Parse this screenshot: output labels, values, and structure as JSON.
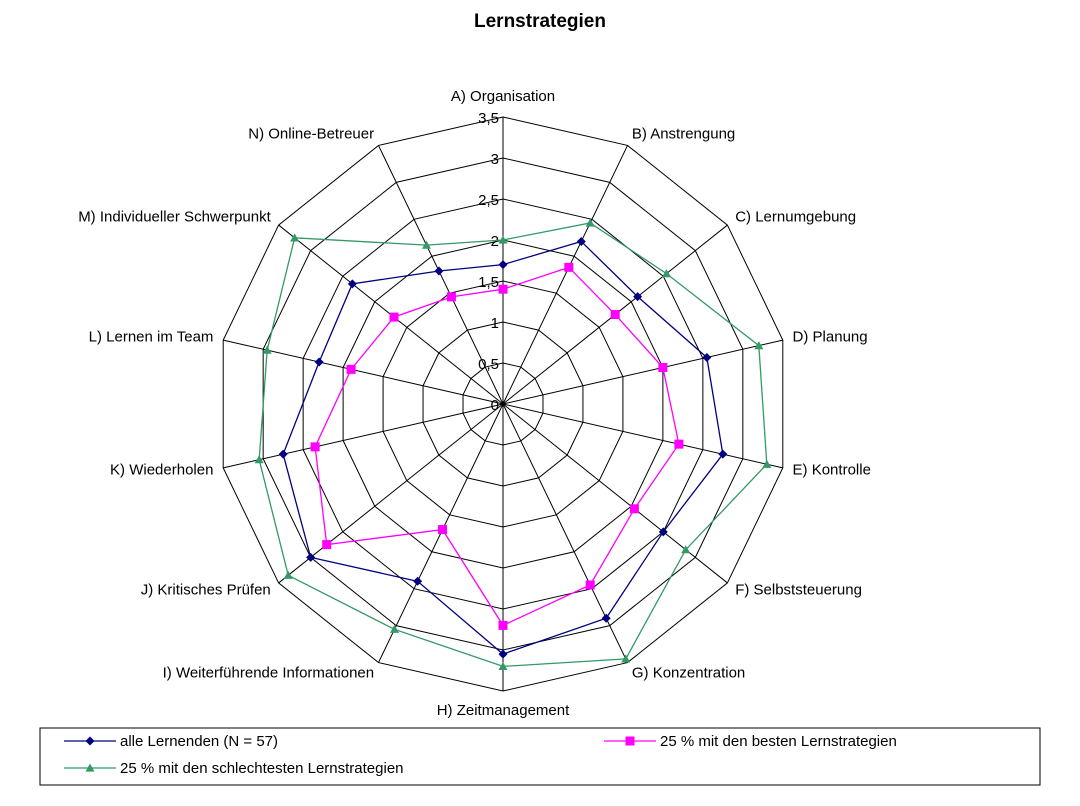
{
  "chart_data": {
    "type": "radar",
    "title": "Lernstrategien",
    "categories": [
      "A) Organisation",
      "B) Anstrengung",
      "C) Lernumgebung",
      "D) Planung",
      "E) Kontrolle",
      "F) Selbststeuerung",
      "G) Konzentration",
      "H) Zeitmanagement",
      "I) Weiterführende Informationen",
      "J) Kritisches Prüfen",
      "K) Wiederholen",
      "L) Lernen im Team",
      "M) Individueller Schwerpunkt",
      "N) Online-Betreuer"
    ],
    "ylim": [
      0,
      3.5
    ],
    "yticks": [
      0,
      {
        "value": 0.5,
        "label": "0,5"
      },
      1,
      {
        "value": 1.5,
        "label": "1,5"
      },
      2,
      {
        "value": 2.5,
        "label": "2,5"
      },
      3,
      {
        "value": 3.5,
        "label": "3,5"
      }
    ],
    "series": [
      {
        "name": "alle Lernenden (N = 57)",
        "color": "#000080",
        "marker": "diamond",
        "values": [
          1.7,
          2.2,
          2.1,
          2.55,
          2.75,
          2.5,
          2.9,
          3.05,
          2.4,
          3.0,
          2.75,
          2.3,
          2.35,
          1.8
        ]
      },
      {
        "name": "25 % mit den besten Lernstrategien",
        "color": "#ff00ff",
        "marker": "square",
        "values": [
          1.4,
          1.85,
          1.75,
          2.0,
          2.2,
          2.05,
          2.45,
          2.7,
          1.7,
          2.75,
          2.35,
          1.9,
          1.7,
          1.45
        ]
      },
      {
        "name": "25 % mit den schlechtesten Lernstrategien",
        "color": "#339966",
        "marker": "triangle",
        "values": [
          2.0,
          2.45,
          2.55,
          3.2,
          3.3,
          2.85,
          3.45,
          3.2,
          3.05,
          3.35,
          3.05,
          2.95,
          3.25,
          2.15
        ]
      }
    ]
  }
}
